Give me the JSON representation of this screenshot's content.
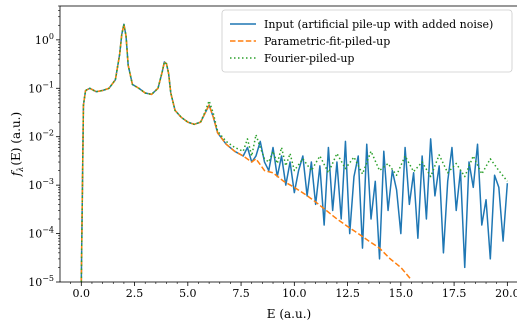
{
  "chart_data": {
    "type": "line",
    "xlabel": "E (a.u.)",
    "ylabel": "f_λ(E) (a.u.)",
    "ylabel_main": "f",
    "ylabel_sub": "λ",
    "ylabel_rest": "(E) (a.u.)",
    "xlim": [
      -1.0,
      20.5
    ],
    "ylim": [
      1e-05,
      5.0
    ],
    "yscale": "log",
    "grid": false,
    "legend_position": "top-right",
    "x_ticks": [
      0.0,
      2.5,
      5.0,
      7.5,
      10.0,
      12.5,
      15.0,
      17.5,
      20.0
    ],
    "x_tick_labels": [
      "0.0",
      "2.5",
      "5.0",
      "7.5",
      "10.0",
      "12.5",
      "15.0",
      "17.5",
      "20.0"
    ],
    "y_ticks": [
      1e-05,
      0.0001,
      0.001,
      0.01,
      0.1,
      1.0
    ],
    "y_tick_labels": [
      {
        "base": "10",
        "exp": "−5"
      },
      {
        "base": "10",
        "exp": "−4"
      },
      {
        "base": "10",
        "exp": "−3"
      },
      {
        "base": "10",
        "exp": "−2"
      },
      {
        "base": "10",
        "exp": "−1"
      },
      {
        "base": "10",
        "exp": "0"
      }
    ],
    "series": [
      {
        "name": "Input (artificial pile-up with added noise)",
        "color": "#1f77b4",
        "style": "solid",
        "x": [
          0.0,
          0.1,
          0.2,
          0.4,
          0.7,
          1.0,
          1.3,
          1.6,
          1.8,
          1.9,
          2.0,
          2.1,
          2.2,
          2.4,
          2.7,
          3.0,
          3.3,
          3.6,
          3.8,
          3.9,
          4.0,
          4.1,
          4.2,
          4.4,
          4.7,
          5.0,
          5.3,
          5.6,
          5.8,
          6.0,
          6.2,
          6.4,
          6.8,
          7.2,
          7.6,
          7.8,
          8.0,
          8.2,
          8.4,
          8.6,
          8.8,
          9.0,
          9.2,
          9.4,
          9.6,
          9.8,
          10.0,
          10.2,
          10.4,
          10.6,
          10.8,
          11.0,
          11.2,
          11.4,
          11.6,
          11.8,
          12.0,
          12.2,
          12.4,
          12.6,
          12.8,
          13.0,
          13.2,
          13.4,
          13.6,
          13.8,
          14.0,
          14.2,
          14.4,
          14.6,
          14.8,
          15.0,
          15.2,
          15.4,
          15.6,
          15.8,
          16.0,
          16.2,
          16.4,
          16.6,
          16.8,
          17.0,
          17.2,
          17.4,
          17.6,
          17.8,
          18.0,
          18.2,
          18.4,
          18.6,
          18.8,
          19.0,
          19.2,
          19.4,
          19.6,
          19.8,
          20.0
        ],
        "y": [
          1e-05,
          0.045,
          0.09,
          0.1,
          0.085,
          0.09,
          0.1,
          0.15,
          0.5,
          1.3,
          2.1,
          1.2,
          0.3,
          0.12,
          0.1,
          0.08,
          0.075,
          0.1,
          0.22,
          0.35,
          0.32,
          0.2,
          0.08,
          0.035,
          0.025,
          0.02,
          0.018,
          0.02,
          0.03,
          0.045,
          0.025,
          0.012,
          0.007,
          0.005,
          0.004,
          0.006,
          0.003,
          0.004,
          0.008,
          0.003,
          0.002,
          0.006,
          0.0015,
          0.004,
          0.001,
          0.003,
          0.0007,
          0.002,
          0.004,
          0.0006,
          0.003,
          0.0004,
          0.0025,
          0.00015,
          0.006,
          0.0003,
          0.003,
          0.0002,
          0.008,
          0.0001,
          0.0015,
          0.004,
          5e-05,
          0.007,
          0.0002,
          0.0012,
          3e-05,
          0.005,
          0.0003,
          0.002,
          0.0008,
          0.0001,
          0.006,
          0.0004,
          0.0018,
          8e-05,
          0.004,
          0.0002,
          0.009,
          0.0006,
          0.0025,
          4e-05,
          0.0012,
          0.006,
          0.0003,
          0.002,
          2e-05,
          0.003,
          0.0009,
          0.007,
          0.00015,
          0.0005,
          3e-05,
          0.0016,
          0.0009,
          7e-05,
          0.0011
        ]
      },
      {
        "name": "Parametric-fit-piled-up",
        "color": "#ff7f0e",
        "style": "dashed",
        "x": [
          0.0,
          0.1,
          0.2,
          0.4,
          0.7,
          1.0,
          1.3,
          1.6,
          1.8,
          1.9,
          2.0,
          2.1,
          2.2,
          2.4,
          2.7,
          3.0,
          3.3,
          3.6,
          3.8,
          3.9,
          4.0,
          4.1,
          4.2,
          4.4,
          4.7,
          5.0,
          5.3,
          5.6,
          5.8,
          6.0,
          6.2,
          6.4,
          6.8,
          7.2,
          7.6,
          8.0,
          8.2,
          8.6,
          9.0,
          9.5,
          10.0,
          10.5,
          11.0,
          11.5,
          12.0,
          12.5,
          13.0,
          13.5,
          14.0,
          14.5,
          15.0,
          15.5
        ],
        "y": [
          1e-05,
          0.045,
          0.09,
          0.1,
          0.085,
          0.09,
          0.1,
          0.15,
          0.5,
          1.3,
          2.1,
          1.2,
          0.3,
          0.12,
          0.1,
          0.08,
          0.075,
          0.1,
          0.22,
          0.35,
          0.32,
          0.2,
          0.08,
          0.035,
          0.025,
          0.02,
          0.018,
          0.02,
          0.03,
          0.045,
          0.025,
          0.012,
          0.007,
          0.005,
          0.004,
          0.003,
          0.0035,
          0.002,
          0.0018,
          0.0012,
          0.0009,
          0.00065,
          0.00045,
          0.0003,
          0.0002,
          0.00014,
          0.0001,
          7e-05,
          5e-05,
          3e-05,
          2e-05,
          1.1e-05
        ]
      },
      {
        "name": "Fourier-piled-up",
        "color": "#2ca02c",
        "style": "dotted",
        "x": [
          0.0,
          0.1,
          0.2,
          0.4,
          0.7,
          1.0,
          1.3,
          1.6,
          1.8,
          1.9,
          2.0,
          2.1,
          2.2,
          2.4,
          2.7,
          3.0,
          3.3,
          3.6,
          3.8,
          3.9,
          4.0,
          4.1,
          4.2,
          4.4,
          4.7,
          5.0,
          5.3,
          5.6,
          5.8,
          6.0,
          6.2,
          6.4,
          6.8,
          7.2,
          7.6,
          7.8,
          8.0,
          8.2,
          8.4,
          8.6,
          8.8,
          9.0,
          9.2,
          9.4,
          9.6,
          9.8,
          10.0,
          10.4,
          10.8,
          11.2,
          11.6,
          12.0,
          12.4,
          12.8,
          13.2,
          13.6,
          14.0,
          14.4,
          14.8,
          15.2,
          15.6,
          16.0,
          16.4,
          16.8,
          17.2,
          17.6,
          18.0,
          18.4,
          18.8,
          19.2,
          19.6,
          20.0
        ],
        "y": [
          1e-05,
          0.045,
          0.09,
          0.1,
          0.085,
          0.09,
          0.1,
          0.15,
          0.5,
          1.3,
          2.1,
          1.2,
          0.3,
          0.12,
          0.1,
          0.08,
          0.075,
          0.1,
          0.22,
          0.35,
          0.32,
          0.2,
          0.08,
          0.035,
          0.025,
          0.02,
          0.018,
          0.02,
          0.032,
          0.055,
          0.03,
          0.013,
          0.008,
          0.006,
          0.005,
          0.009,
          0.004,
          0.011,
          0.006,
          0.0035,
          0.003,
          0.005,
          0.0028,
          0.006,
          0.0025,
          0.0045,
          0.002,
          0.0035,
          0.002,
          0.004,
          0.0018,
          0.0045,
          0.0022,
          0.0038,
          0.0017,
          0.005,
          0.002,
          0.0028,
          0.0016,
          0.004,
          0.0019,
          0.003,
          0.0015,
          0.0042,
          0.0018,
          0.0028,
          0.0015,
          0.004,
          0.0017,
          0.0035,
          0.002,
          0.0012
        ]
      }
    ]
  }
}
